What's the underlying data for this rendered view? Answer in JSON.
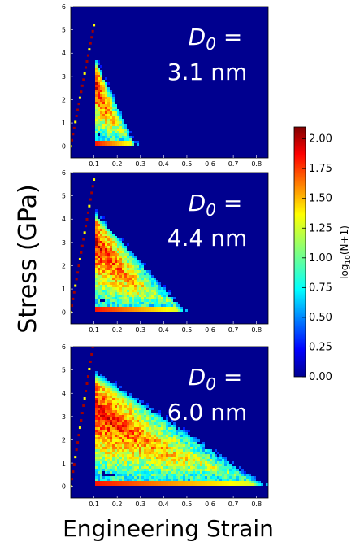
{
  "figure": {
    "ylabel": "Stress (GPa)",
    "xlabel": "Engineering Strain",
    "colorbar": {
      "label": "log10(N+1)",
      "ticks": [
        "2.00",
        "1.75",
        "1.50",
        "1.25",
        "1.00",
        "0.75",
        "0.50",
        "0.25",
        "0.00"
      ],
      "range": [
        0,
        2.1
      ],
      "colormap": "jet"
    }
  },
  "chart_data": [
    {
      "type": "heatmap",
      "annotation_line1": "D0 =",
      "annotation_line2": "3.1 nm",
      "xlim": [
        0,
        0.85
      ],
      "ylim": [
        -0.5,
        6
      ],
      "xticks": [
        "0.1",
        "0.2",
        "0.3",
        "0.4",
        "0.5",
        "0.6",
        "0.7",
        "0.8"
      ],
      "yticks": [
        "0",
        "1",
        "2",
        "3",
        "4",
        "5",
        "6"
      ],
      "background": "#00008f",
      "shape": {
        "max_strain": 0.27,
        "peak_strain": 0.1,
        "peak_stress": 3.9,
        "base_stress": 0.2
      }
    },
    {
      "type": "heatmap",
      "annotation_line1": "D0 =",
      "annotation_line2": "4.4 nm",
      "xlim": [
        0,
        0.85
      ],
      "ylim": [
        -0.5,
        6
      ],
      "xticks": [
        "0.1",
        "0.2",
        "0.3",
        "0.4",
        "0.5",
        "0.6",
        "0.7",
        "0.8"
      ],
      "yticks": [
        "0",
        "1",
        "2",
        "3",
        "4",
        "5",
        "6"
      ],
      "background": "#00008f",
      "shape": {
        "max_strain": 0.48,
        "peak_strain": 0.1,
        "peak_stress": 4.4,
        "base_stress": 0.2
      }
    },
    {
      "type": "heatmap",
      "annotation_line1": "D0 =",
      "annotation_line2": "6.0 nm",
      "xlim": [
        0,
        0.85
      ],
      "ylim": [
        -0.5,
        6
      ],
      "xticks": [
        "0.1",
        "0.2",
        "0.3",
        "0.4",
        "0.5",
        "0.6",
        "0.7",
        "0.8"
      ],
      "yticks": [
        "0",
        "1",
        "2",
        "3",
        "4",
        "5",
        "6"
      ],
      "background": "#00008f",
      "shape": {
        "max_strain": 0.82,
        "peak_strain": 0.1,
        "peak_stress": 5.0,
        "base_stress": 0.2
      }
    }
  ]
}
